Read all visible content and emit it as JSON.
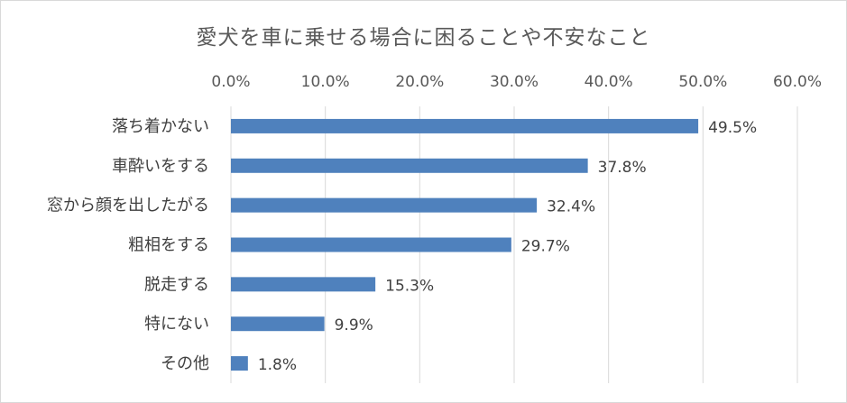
{
  "chart_data": {
    "type": "bar",
    "orientation": "horizontal",
    "title": "愛犬を車に乗せる場合に困ることや不安なこと",
    "categories": [
      "落ち着かない",
      "車酔いをする",
      "窓から顔を出したがる",
      "粗相をする",
      "脱走する",
      "特にない",
      "その他"
    ],
    "values": [
      49.5,
      37.8,
      32.4,
      29.7,
      15.3,
      9.9,
      1.8
    ],
    "data_labels": [
      "49.5%",
      "37.8%",
      "32.4%",
      "29.7%",
      "15.3%",
      "9.9%",
      "1.8%"
    ],
    "x_ticks": [
      "0.0%",
      "10.0%",
      "20.0%",
      "30.0%",
      "40.0%",
      "50.0%",
      "60.0%"
    ],
    "xlim": [
      0,
      60
    ],
    "x_axis_position": "top",
    "grid": true,
    "bar_color": "#4f81bd",
    "grid_color": "#d9d9d9"
  }
}
